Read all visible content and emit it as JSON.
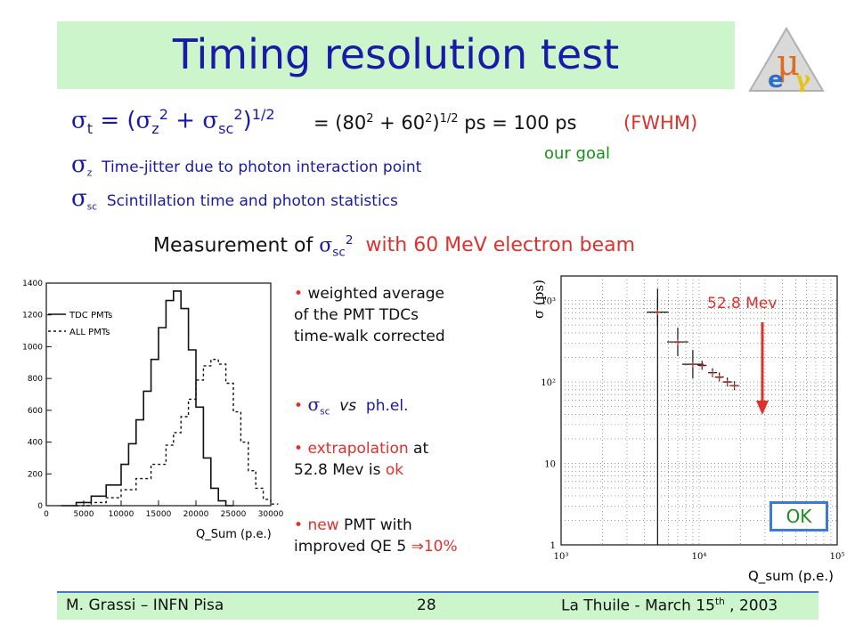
{
  "title": "Timing resolution test",
  "formula": {
    "lhs_sub": "t",
    "z_sub": "z",
    "z_sup": "2",
    "sc_sub": "sc",
    "sc_sup": "2",
    "power": "1/2",
    "eq_prefix": "= (80",
    "eq_sup1": "2",
    "eq_plus": " + 60",
    "eq_sup2": "2",
    "eq_close": ")",
    "eq_pow": "1/2",
    "eq_result": " ps = 100 ps",
    "fwhm": "(FWHM)",
    "goal": "our goal"
  },
  "definitions": [
    {
      "sub": "z",
      "text": "Time-jitter due to photon interaction point"
    },
    {
      "sub": "sc",
      "text": "Scintillation time and photon statistics"
    }
  ],
  "measurement": {
    "prefix": "Measurement of ",
    "sub": "sc",
    "sup": "2",
    "beam": "with 60 MeV electron beam"
  },
  "bullets": [
    {
      "lines": [
        "weighted average",
        "of the PMT TDCs",
        "time-walk corrected"
      ]
    },
    {
      "sub": "sc",
      "vs": "vs",
      "ph": "ph.el."
    },
    {
      "red": "extrapolation",
      "rest": " at",
      "line2a": "52.8 Mev is ",
      "line2b": "ok"
    },
    {
      "red": "new",
      "rest": " PMT with",
      "line2": "improved QE 5 ",
      "arrow": "⇒",
      "line2end": "10%"
    }
  ],
  "chart_data": [
    {
      "type": "line",
      "title": "",
      "xlabel": "Q_Sum (p.e.)",
      "ylabel": "",
      "xlim": [
        0,
        30000
      ],
      "ylim": [
        0,
        1400
      ],
      "xticks": [
        "0",
        "5000",
        "10000",
        "15000",
        "20000",
        "25000",
        "30000"
      ],
      "yticks": [
        "0",
        "200",
        "400",
        "600",
        "800",
        "1000",
        "1200",
        "1400"
      ],
      "legend": "top-left",
      "series": [
        {
          "name": "TDC PMTs",
          "style": "solid",
          "x": [
            2000,
            4000,
            6000,
            8000,
            10000,
            11000,
            12000,
            13000,
            14000,
            15000,
            16000,
            17000,
            18000,
            19000,
            20000,
            21000,
            22000,
            23000,
            24000
          ],
          "y": [
            0,
            20,
            60,
            130,
            260,
            390,
            540,
            720,
            920,
            1120,
            1290,
            1350,
            1240,
            980,
            620,
            300,
            110,
            30,
            0
          ]
        },
        {
          "name": "ALL PMTs",
          "style": "dashed",
          "x": [
            4000,
            6000,
            8000,
            10000,
            12000,
            14000,
            16000,
            17000,
            18000,
            19000,
            20000,
            21000,
            22000,
            23000,
            24000,
            25000,
            26000,
            27000,
            28000,
            29000,
            30000
          ],
          "y": [
            0,
            20,
            50,
            100,
            170,
            260,
            380,
            460,
            560,
            670,
            790,
            880,
            920,
            890,
            770,
            590,
            400,
            220,
            110,
            40,
            10
          ]
        }
      ]
    },
    {
      "type": "scatter",
      "title": "",
      "xlabel": "Q_sum (p.e.)",
      "ylabel": "σ (ps)",
      "xscale": "log",
      "yscale": "log",
      "xlim": [
        1000,
        100000
      ],
      "ylim": [
        1,
        2000
      ],
      "xticks": [
        "10³",
        "10⁴",
        "10⁵"
      ],
      "yticks": [
        "1",
        "10",
        "10²",
        "10³"
      ],
      "series": [
        {
          "name": "",
          "x": [
            5000,
            7000,
            9000,
            10500,
            12500,
            14000,
            16000,
            18000
          ],
          "y": [
            720,
            310,
            165,
            160,
            130,
            115,
            100,
            90
          ]
        }
      ],
      "annotation": "52.8 Mev",
      "badge": "OK"
    }
  ],
  "footer": {
    "left": "M. Grassi – INFN Pisa",
    "center": "28",
    "right_prefix": "La Thuile -  March 15",
    "right_sup": "th",
    "right_suffix": " , 2003"
  }
}
